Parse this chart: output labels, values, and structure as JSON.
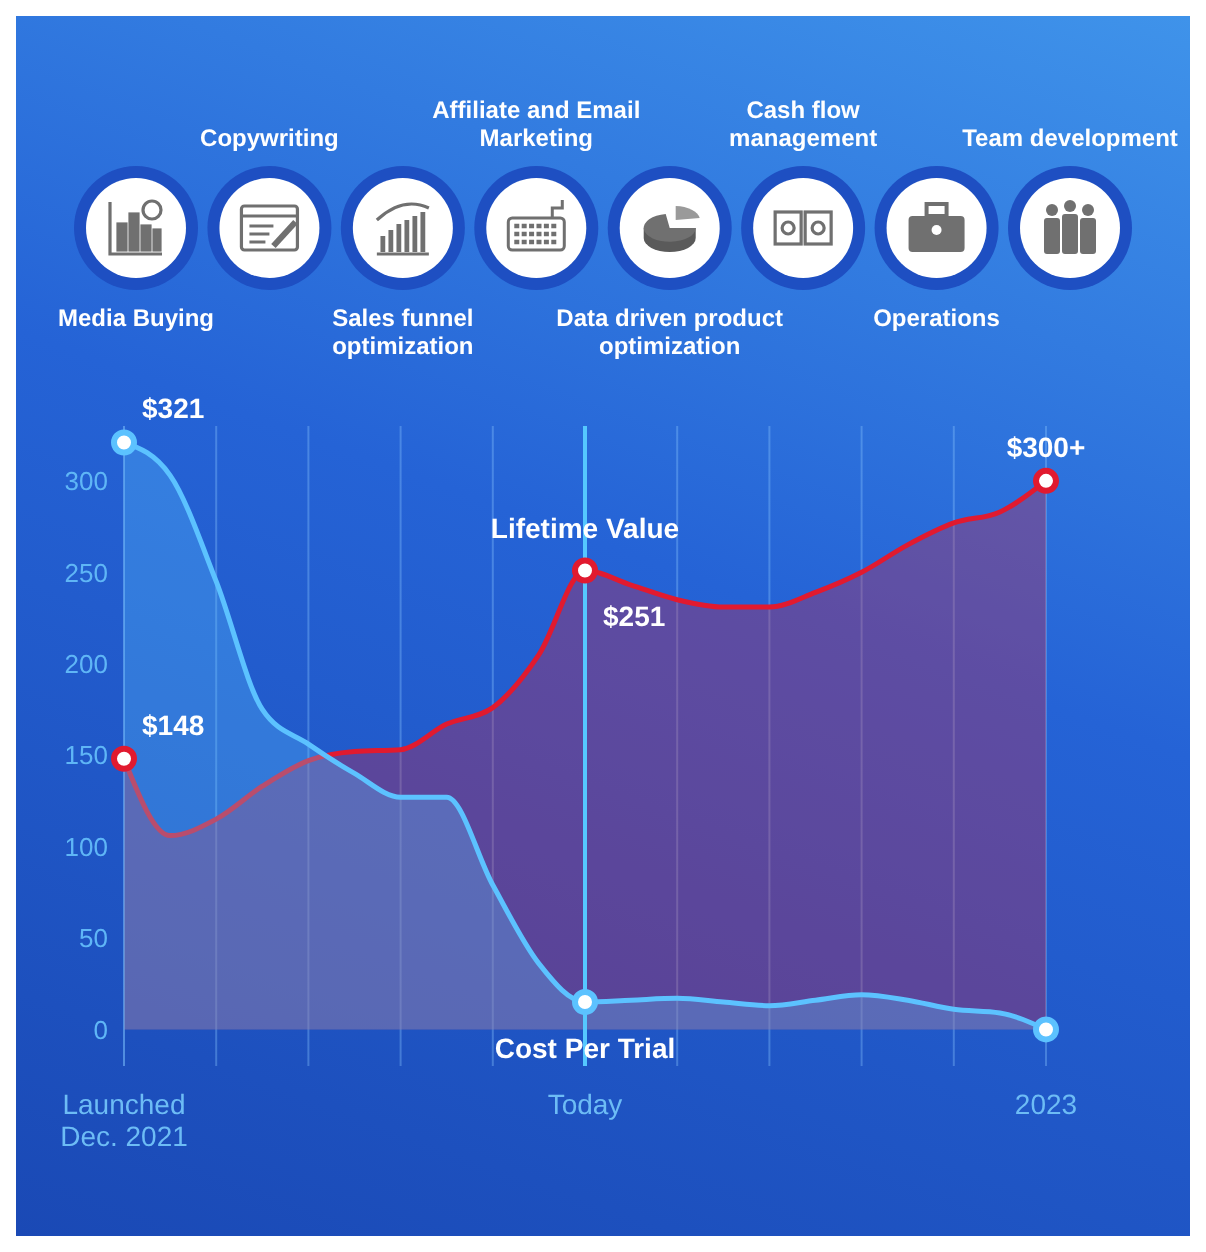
{
  "chart_data": {
    "type": "area",
    "annotations": [
      "Media Buying",
      "Copywriting",
      "Sales funnel optimization",
      "Affiliate and Email Marketing",
      "Data driven product optimization",
      "Cash flow management",
      "Operations",
      "Team development"
    ],
    "categories": [
      "Launched Dec. 2021",
      null,
      null,
      null,
      null,
      null,
      null,
      null,
      null,
      null,
      "Today",
      null,
      null,
      null,
      null,
      null,
      null,
      null,
      null,
      null,
      "2023"
    ],
    "ylim": [
      -20,
      330
    ],
    "yticks": [
      0,
      50,
      100,
      150,
      200,
      250,
      300
    ],
    "grid": "x",
    "ref_lines": [
      {
        "axis": "x",
        "value": "Today",
        "color": "#55c8ff"
      }
    ],
    "series": [
      {
        "name": "Lifetime Value",
        "color": "#e11a2f",
        "values": [
          148,
          106,
          115,
          133,
          147,
          152,
          153,
          167,
          176,
          205,
          251,
          243,
          235,
          231,
          231,
          239,
          250,
          265,
          277,
          283,
          300
        ],
        "value_labels": [
          "$148",
          null,
          null,
          null,
          null,
          null,
          null,
          null,
          null,
          null,
          "$251",
          null,
          null,
          null,
          null,
          null,
          null,
          null,
          null,
          null,
          "$300+"
        ]
      },
      {
        "name": "Cost Per Trial",
        "color": "#5cc2ff",
        "values": [
          321,
          303,
          245,
          175,
          156,
          140,
          127,
          127,
          79,
          36,
          15,
          16,
          17,
          15,
          13,
          16,
          19,
          16,
          11,
          9,
          0
        ],
        "value_labels": [
          "$321",
          null,
          null,
          null,
          null,
          null,
          null,
          null,
          null,
          null,
          null,
          null,
          null,
          null,
          null,
          null,
          null,
          null,
          null,
          null,
          null
        ]
      }
    ]
  }
}
